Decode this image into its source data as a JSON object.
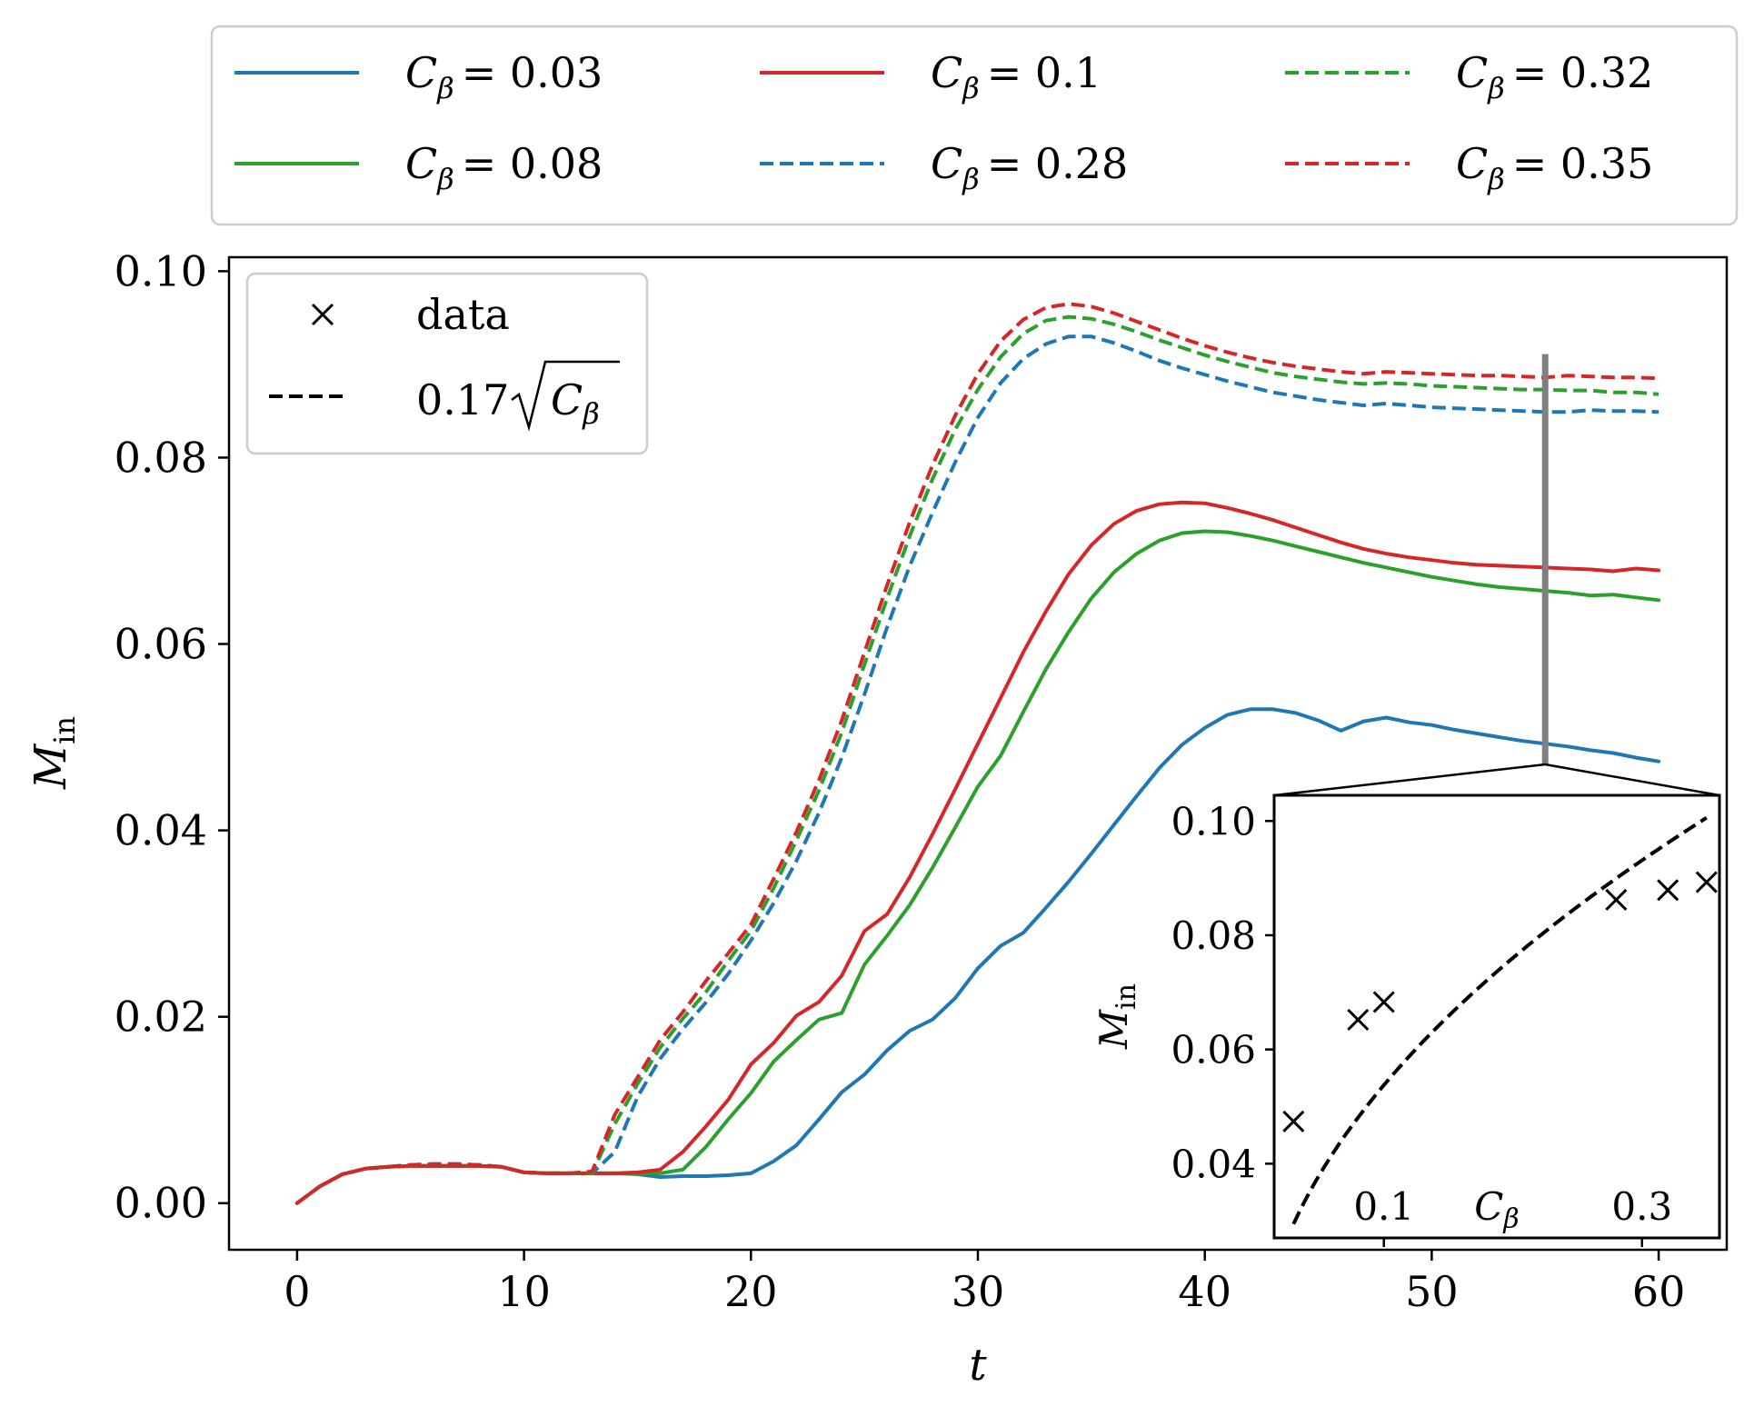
{
  "chart_data": {
    "type": "line",
    "xlabel": "t",
    "ylabel": "M_in",
    "xlim": [
      -3,
      63
    ],
    "ylim": [
      -0.005,
      0.1015
    ],
    "xticks": [
      0,
      10,
      20,
      30,
      40,
      50,
      60
    ],
    "xtick_labels": [
      "0",
      "10",
      "20",
      "30",
      "40",
      "50",
      "60"
    ],
    "yticks": [
      0.0,
      0.02,
      0.04,
      0.06,
      0.08,
      0.1
    ],
    "ytick_labels": [
      "0.00",
      "0.02",
      "0.04",
      "0.06",
      "0.08",
      "0.10"
    ],
    "legend_top": {
      "placement": "above plot",
      "entries": [
        {
          "symbol": "C",
          "sub": "β",
          "value": "= 0.03",
          "color": "#1f77b4",
          "dash": false
        },
        {
          "symbol": "C",
          "sub": "β",
          "value": "= 0.08",
          "color": "#2ca02c",
          "dash": false
        },
        {
          "symbol": "C",
          "sub": "β",
          "value": "= 0.1",
          "color": "#d62728",
          "dash": false
        },
        {
          "symbol": "C",
          "sub": "β",
          "value": "= 0.28",
          "color": "#1f77b4",
          "dash": true
        },
        {
          "symbol": "C",
          "sub": "β",
          "value": "= 0.32",
          "color": "#2ca02c",
          "dash": true
        },
        {
          "symbol": "C",
          "sub": "β",
          "value": "= 0.35",
          "color": "#d62728",
          "dash": true
        }
      ]
    },
    "legend_inner": {
      "placement": "upper-left",
      "data_label": "data",
      "fit_prefix": "0.17",
      "fit_symbol": "C",
      "fit_sub": "β"
    },
    "series": [
      {
        "name": "C_β = 0.03",
        "color": "#1f77b4",
        "dash": false,
        "t": [
          0,
          1,
          2,
          3,
          4,
          5,
          6,
          7,
          8,
          9,
          10,
          11,
          12,
          13,
          14,
          15,
          16,
          17,
          18,
          19,
          20,
          21,
          22,
          23,
          24,
          25,
          26,
          27,
          28,
          29,
          30,
          31,
          32,
          33,
          34,
          35,
          36,
          37,
          38,
          39,
          40,
          41,
          42,
          43,
          44,
          45,
          46,
          47,
          48,
          49,
          50,
          51,
          52,
          53,
          54,
          55,
          56,
          57,
          58,
          59,
          60
        ],
        "values": [
          0.0,
          0.0018,
          0.0031,
          0.0037,
          0.0039,
          0.004,
          0.004,
          0.004,
          0.004,
          0.0039,
          0.0033,
          0.0032,
          0.0032,
          0.0032,
          0.0032,
          0.0031,
          0.0028,
          0.0029,
          0.0029,
          0.003,
          0.0032,
          0.0045,
          0.0062,
          0.009,
          0.0119,
          0.0138,
          0.0164,
          0.0185,
          0.0197,
          0.022,
          0.0252,
          0.0276,
          0.029,
          0.0317,
          0.0345,
          0.0375,
          0.0406,
          0.0437,
          0.0467,
          0.0492,
          0.051,
          0.0524,
          0.053,
          0.053,
          0.0526,
          0.0518,
          0.0507,
          0.0517,
          0.0521,
          0.0516,
          0.0513,
          0.0508,
          0.0504,
          0.05,
          0.0496,
          0.0493,
          0.049,
          0.0486,
          0.0483,
          0.0478,
          0.0474
        ]
      },
      {
        "name": "C_β = 0.08",
        "color": "#2ca02c",
        "dash": false,
        "t": [
          0,
          1,
          2,
          3,
          4,
          5,
          6,
          7,
          8,
          9,
          10,
          11,
          12,
          13,
          14,
          15,
          16,
          17,
          18,
          19,
          20,
          21,
          22,
          23,
          24,
          25,
          26,
          27,
          28,
          29,
          30,
          31,
          32,
          33,
          34,
          35,
          36,
          37,
          38,
          39,
          40,
          41,
          42,
          43,
          44,
          45,
          46,
          47,
          48,
          49,
          50,
          51,
          52,
          53,
          54,
          55,
          56,
          57,
          58,
          59,
          60
        ],
        "values": [
          0.0,
          0.0018,
          0.0031,
          0.0037,
          0.0039,
          0.004,
          0.004,
          0.004,
          0.004,
          0.0039,
          0.0033,
          0.0032,
          0.0032,
          0.0032,
          0.0032,
          0.0032,
          0.0032,
          0.0036,
          0.006,
          0.009,
          0.0118,
          0.0152,
          0.0175,
          0.0197,
          0.0204,
          0.0256,
          0.0287,
          0.032,
          0.036,
          0.0403,
          0.0447,
          0.048,
          0.0527,
          0.0573,
          0.0613,
          0.0649,
          0.0677,
          0.0697,
          0.0711,
          0.0719,
          0.0721,
          0.072,
          0.0716,
          0.0711,
          0.0705,
          0.0699,
          0.0693,
          0.0687,
          0.0682,
          0.0677,
          0.0672,
          0.0668,
          0.0664,
          0.0661,
          0.0659,
          0.0657,
          0.0655,
          0.0652,
          0.0653,
          0.065,
          0.0647
        ]
      },
      {
        "name": "C_β = 0.1",
        "color": "#d62728",
        "dash": false,
        "t": [
          0,
          1,
          2,
          3,
          4,
          5,
          6,
          7,
          8,
          9,
          10,
          11,
          12,
          13,
          14,
          15,
          16,
          17,
          18,
          19,
          20,
          21,
          22,
          23,
          24,
          25,
          26,
          27,
          28,
          29,
          30,
          31,
          32,
          33,
          34,
          35,
          36,
          37,
          38,
          39,
          40,
          41,
          42,
          43,
          44,
          45,
          46,
          47,
          48,
          49,
          50,
          51,
          52,
          53,
          54,
          55,
          56,
          57,
          58,
          59,
          60
        ],
        "values": [
          0.0,
          0.0018,
          0.0031,
          0.0037,
          0.0039,
          0.004,
          0.004,
          0.004,
          0.004,
          0.0039,
          0.0033,
          0.0032,
          0.0032,
          0.0032,
          0.0032,
          0.0033,
          0.0036,
          0.0055,
          0.0082,
          0.0111,
          0.0149,
          0.0172,
          0.0201,
          0.0216,
          0.0244,
          0.0292,
          0.031,
          0.035,
          0.0396,
          0.0444,
          0.0493,
          0.0542,
          0.0591,
          0.0635,
          0.0675,
          0.0706,
          0.0729,
          0.0743,
          0.075,
          0.0752,
          0.0751,
          0.0746,
          0.074,
          0.0733,
          0.0725,
          0.0717,
          0.0709,
          0.0702,
          0.0697,
          0.0693,
          0.069,
          0.0687,
          0.0685,
          0.0684,
          0.0683,
          0.0682,
          0.0681,
          0.068,
          0.0678,
          0.0681,
          0.0679
        ]
      },
      {
        "name": "C_β = 0.28",
        "color": "#1f77b4",
        "dash": true,
        "t": [
          0,
          1,
          2,
          3,
          4,
          5,
          6,
          7,
          8,
          9,
          10,
          11,
          12,
          13,
          14,
          15,
          16,
          17,
          18,
          19,
          20,
          21,
          22,
          23,
          24,
          25,
          26,
          27,
          28,
          29,
          30,
          31,
          32,
          33,
          34,
          35,
          36,
          37,
          38,
          39,
          40,
          41,
          42,
          43,
          44,
          45,
          46,
          47,
          48,
          49,
          50,
          51,
          52,
          53,
          54,
          55,
          56,
          57,
          58,
          59,
          60
        ],
        "values": [
          0.0,
          0.0018,
          0.0031,
          0.0037,
          0.0039,
          0.0041,
          0.0042,
          0.0042,
          0.0041,
          0.0039,
          0.0033,
          0.0032,
          0.0032,
          0.0032,
          0.0055,
          0.0114,
          0.0155,
          0.0187,
          0.0215,
          0.0246,
          0.0282,
          0.0322,
          0.0367,
          0.0419,
          0.0478,
          0.0546,
          0.0618,
          0.0684,
          0.0741,
          0.0795,
          0.0843,
          0.088,
          0.0906,
          0.0922,
          0.093,
          0.093,
          0.0923,
          0.0914,
          0.0904,
          0.0896,
          0.0889,
          0.0882,
          0.0876,
          0.087,
          0.0866,
          0.0862,
          0.0859,
          0.0856,
          0.0858,
          0.0856,
          0.0854,
          0.0853,
          0.0852,
          0.0851,
          0.085,
          0.0849,
          0.0849,
          0.0851,
          0.085,
          0.085,
          0.0849
        ]
      },
      {
        "name": "C_β = 0.32",
        "color": "#2ca02c",
        "dash": true,
        "t": [
          0,
          1,
          2,
          3,
          4,
          5,
          6,
          7,
          8,
          9,
          10,
          11,
          12,
          13,
          14,
          15,
          16,
          17,
          18,
          19,
          20,
          21,
          22,
          23,
          24,
          25,
          26,
          27,
          28,
          29,
          30,
          31,
          32,
          33,
          34,
          35,
          36,
          37,
          38,
          39,
          40,
          41,
          42,
          43,
          44,
          45,
          46,
          47,
          48,
          49,
          50,
          51,
          52,
          53,
          54,
          55,
          56,
          57,
          58,
          59,
          60
        ],
        "values": [
          0.0,
          0.0018,
          0.0031,
          0.0037,
          0.0039,
          0.0041,
          0.0042,
          0.0042,
          0.0041,
          0.0039,
          0.0033,
          0.0032,
          0.0032,
          0.0032,
          0.0085,
          0.0128,
          0.0167,
          0.0198,
          0.0226,
          0.026,
          0.0292,
          0.0338,
          0.0389,
          0.0443,
          0.0505,
          0.0578,
          0.0649,
          0.0716,
          0.0777,
          0.083,
          0.0873,
          0.0908,
          0.0933,
          0.0947,
          0.0951,
          0.0949,
          0.0943,
          0.0935,
          0.0926,
          0.0918,
          0.091,
          0.0903,
          0.0897,
          0.0891,
          0.0887,
          0.0884,
          0.0881,
          0.0879,
          0.088,
          0.0879,
          0.0877,
          0.0876,
          0.0875,
          0.0874,
          0.0873,
          0.0873,
          0.0872,
          0.0872,
          0.087,
          0.087,
          0.0868
        ]
      },
      {
        "name": "C_β = 0.35",
        "color": "#d62728",
        "dash": true,
        "t": [
          0,
          1,
          2,
          3,
          4,
          5,
          6,
          7,
          8,
          9,
          10,
          11,
          12,
          13,
          14,
          15,
          16,
          17,
          18,
          19,
          20,
          21,
          22,
          23,
          24,
          25,
          26,
          27,
          28,
          29,
          30,
          31,
          32,
          33,
          34,
          35,
          36,
          37,
          38,
          39,
          40,
          41,
          42,
          43,
          44,
          45,
          46,
          47,
          48,
          49,
          50,
          51,
          52,
          53,
          54,
          55,
          56,
          57,
          58,
          59,
          60
        ],
        "values": [
          0.0,
          0.0018,
          0.0031,
          0.0037,
          0.0039,
          0.0041,
          0.0042,
          0.0042,
          0.0041,
          0.0039,
          0.0033,
          0.0032,
          0.0032,
          0.0034,
          0.0095,
          0.0135,
          0.0175,
          0.0205,
          0.0238,
          0.0268,
          0.0299,
          0.0348,
          0.0398,
          0.0454,
          0.0518,
          0.0591,
          0.0663,
          0.0731,
          0.0792,
          0.0845,
          0.089,
          0.0925,
          0.0948,
          0.0961,
          0.0965,
          0.0962,
          0.0955,
          0.0946,
          0.0937,
          0.0928,
          0.092,
          0.0913,
          0.0907,
          0.0902,
          0.0898,
          0.0895,
          0.0892,
          0.089,
          0.0892,
          0.0891,
          0.089,
          0.0889,
          0.0888,
          0.0888,
          0.0887,
          0.0886,
          0.0888,
          0.0887,
          0.0886,
          0.0886,
          0.0885
        ]
      }
    ],
    "marker_t": 55,
    "inset": {
      "type": "scatter",
      "xlabel_symbol": "C",
      "xlabel_sub": "β",
      "ylabel": "M_in",
      "xlim": [
        0.015,
        0.36
      ],
      "ylim": [
        0.027,
        0.1045
      ],
      "xticks": [
        0.1,
        0.3
      ],
      "xtick_labels": [
        "0.1",
        "0.3"
      ],
      "yticks": [
        0.04,
        0.06,
        0.08,
        0.1
      ],
      "ytick_labels": [
        "0.04",
        "0.06",
        "0.08",
        "0.10"
      ],
      "points": [
        {
          "c": 0.03,
          "m": 0.0474
        },
        {
          "c": 0.08,
          "m": 0.0652
        },
        {
          "c": 0.1,
          "m": 0.0683
        },
        {
          "c": 0.28,
          "m": 0.0862
        },
        {
          "c": 0.32,
          "m": 0.0879
        },
        {
          "c": 0.35,
          "m": 0.0893
        }
      ],
      "fit": {
        "coefficient": 0.17,
        "c_range": [
          0.03,
          0.35
        ]
      }
    }
  }
}
